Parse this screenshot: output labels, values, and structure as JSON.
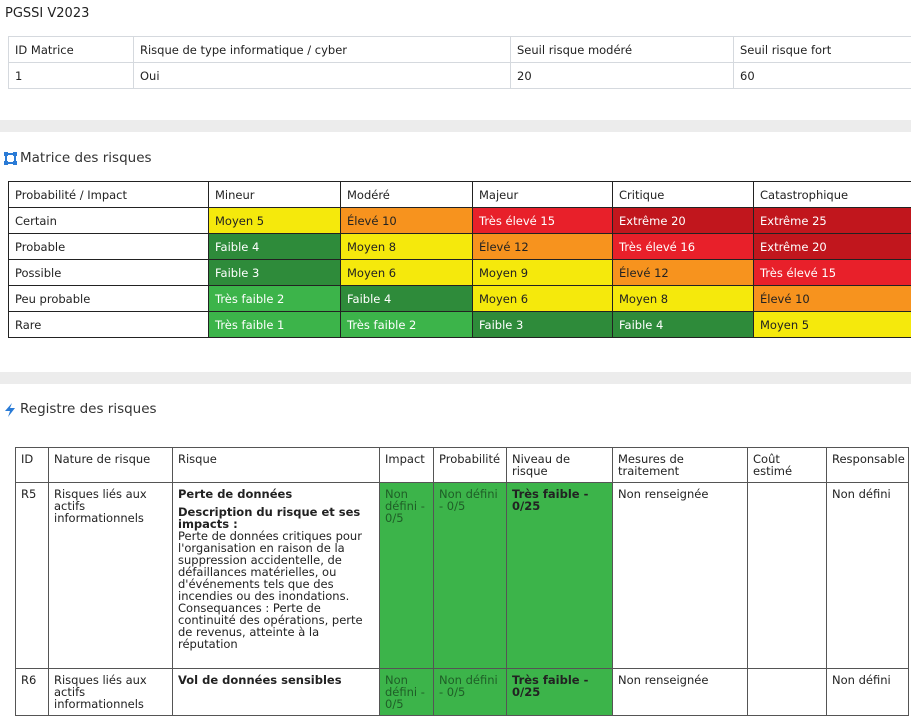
{
  "header": {
    "title": "PGSSI V2023"
  },
  "config_table": {
    "columns": [
      "ID Matrice",
      "Risque de type informatique / cyber",
      "Seuil risque modéré",
      "Seuil risque fort"
    ],
    "rows": [
      [
        "1",
        "Oui",
        "20",
        "60"
      ]
    ]
  },
  "matrix": {
    "title": "Matrice des risques",
    "columns": [
      "Probabilité / Impact",
      "Mineur",
      "Modéré",
      "Majeur",
      "Critique",
      "Catastrophique"
    ],
    "rows": [
      {
        "label": "Certain",
        "cells": [
          {
            "text": "Moyen 5",
            "color": "#f5e90c"
          },
          {
            "text": "Élevé 10",
            "color": "#f7931e"
          },
          {
            "text": "Très élevé 15",
            "color": "#e8202a"
          },
          {
            "text": "Extrême 20",
            "color": "#c1161d"
          },
          {
            "text": "Extrême 25",
            "color": "#c1161d"
          }
        ]
      },
      {
        "label": "Probable",
        "cells": [
          {
            "text": "Faible 4",
            "color": "#2e8b3a"
          },
          {
            "text": "Moyen 8",
            "color": "#f5e90c"
          },
          {
            "text": "Élevé 12",
            "color": "#f7931e"
          },
          {
            "text": "Très élevé 16",
            "color": "#e8202a"
          },
          {
            "text": "Extrême 20",
            "color": "#c1161d"
          }
        ]
      },
      {
        "label": "Possible",
        "cells": [
          {
            "text": "Faible 3",
            "color": "#2e8b3a"
          },
          {
            "text": "Moyen 6",
            "color": "#f5e90c"
          },
          {
            "text": "Moyen 9",
            "color": "#f5e90c"
          },
          {
            "text": "Élevé 12",
            "color": "#f7931e"
          },
          {
            "text": "Très élevé 15",
            "color": "#e8202a"
          }
        ]
      },
      {
        "label": "Peu probable",
        "cells": [
          {
            "text": "Très faible 2",
            "color": "#3cb44a"
          },
          {
            "text": "Faible 4",
            "color": "#2e8b3a"
          },
          {
            "text": "Moyen 6",
            "color": "#f5e90c"
          },
          {
            "text": "Moyen 8",
            "color": "#f5e90c"
          },
          {
            "text": "Élevé 10",
            "color": "#f7931e"
          }
        ]
      },
      {
        "label": "Rare",
        "cells": [
          {
            "text": "Très faible 1",
            "color": "#3cb44a"
          },
          {
            "text": "Très faible 2",
            "color": "#3cb44a"
          },
          {
            "text": "Faible 3",
            "color": "#2e8b3a"
          },
          {
            "text": "Faible 4",
            "color": "#2e8b3a"
          },
          {
            "text": "Moyen 5",
            "color": "#f5e90c"
          }
        ]
      }
    ]
  },
  "register": {
    "title": "Registre des risques",
    "columns": [
      "ID",
      "Nature de risque",
      "Risque",
      "Impact",
      "Probabilité",
      "Niveau de risque",
      "Mesures de traitement",
      "Coût estimé",
      "Responsable"
    ],
    "rows": [
      {
        "id": "R5",
        "nature": "Risques liés aux actifs informationnels",
        "risk": "Perte de données",
        "description_label": "Description du risque et ses impacts :",
        "description": "Perte de données critiques pour l'organisation en raison de la suppression accidentelle, de défaillances matérielles, ou d'événements tels que des incendies ou des inondations.",
        "consequences": "Consequances : Perte de continuité des opérations, perte de revenus, atteinte à la réputation",
        "impact": "Non défini - 0/5",
        "probability": "Non défini - 0/5",
        "level": "Très faible - 0/25",
        "level_color": "#3cb44a",
        "measures": "Non renseignée",
        "cost": "",
        "owner": "Non défini"
      },
      {
        "id": "R6",
        "nature": "Risques liés aux actifs informationnels",
        "risk": "Vol de données sensibles",
        "impact": "Non défini - 0/5",
        "probability": "Non défini - 0/5",
        "level": "Très faible - 0/25",
        "level_color": "#3cb44a",
        "measures": "Non renseignée",
        "cost": "",
        "owner": "Non défini"
      }
    ]
  }
}
